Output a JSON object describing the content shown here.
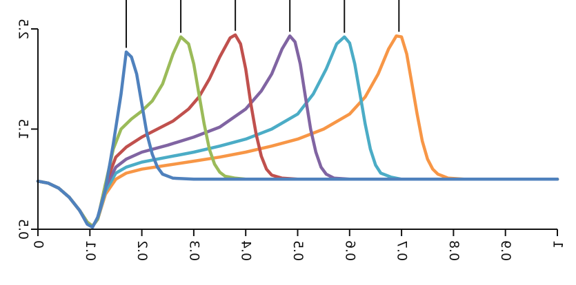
{
  "chart_data": {
    "type": "line",
    "title": "",
    "xlabel": "",
    "ylabel": "",
    "xlim": [
      0,
      1
    ],
    "ylim": [
      0.5,
      2.5
    ],
    "x_ticks": [
      0,
      0.1,
      0.2,
      0.3,
      0.4,
      0.5,
      0.6,
      0.7,
      0.8,
      0.9,
      1
    ],
    "x_tick_labels": [
      "0",
      "0.1",
      "0.2",
      "0.3",
      "0.4",
      "0.5",
      "0.6",
      "0.7",
      "0.8",
      "0.9",
      "1"
    ],
    "y_ticks": [
      0.5,
      1.5,
      2.5
    ],
    "y_tick_labels": [
      "0.5",
      "1.5",
      "2.5"
    ],
    "grid": false,
    "legend": "none",
    "rendering": "mirrored-image",
    "marker_lines_at_peaks": true,
    "series": [
      {
        "color": "#4f81bd",
        "peak_x": 0.17,
        "points": [
          [
            0,
            0.98
          ],
          [
            0.02,
            0.96
          ],
          [
            0.04,
            0.91
          ],
          [
            0.06,
            0.82
          ],
          [
            0.08,
            0.69
          ],
          [
            0.095,
            0.55
          ],
          [
            0.105,
            0.52
          ],
          [
            0.115,
            0.62
          ],
          [
            0.13,
            0.9
          ],
          [
            0.145,
            1.35
          ],
          [
            0.16,
            1.85
          ],
          [
            0.17,
            2.27
          ],
          [
            0.18,
            2.22
          ],
          [
            0.19,
            2.05
          ],
          [
            0.2,
            1.75
          ],
          [
            0.21,
            1.45
          ],
          [
            0.22,
            1.25
          ],
          [
            0.23,
            1.12
          ],
          [
            0.24,
            1.05
          ],
          [
            0.26,
            1.01
          ],
          [
            0.3,
            1.0
          ],
          [
            1,
            1.0
          ]
        ]
      },
      {
        "color": "#9bbb59",
        "peak_x": 0.275,
        "points": [
          [
            0,
            0.98
          ],
          [
            0.02,
            0.96
          ],
          [
            0.04,
            0.91
          ],
          [
            0.06,
            0.82
          ],
          [
            0.08,
            0.69
          ],
          [
            0.095,
            0.57
          ],
          [
            0.105,
            0.53
          ],
          [
            0.115,
            0.6
          ],
          [
            0.13,
            0.95
          ],
          [
            0.145,
            1.3
          ],
          [
            0.16,
            1.5
          ],
          [
            0.18,
            1.6
          ],
          [
            0.2,
            1.68
          ],
          [
            0.22,
            1.78
          ],
          [
            0.24,
            1.95
          ],
          [
            0.26,
            2.25
          ],
          [
            0.275,
            2.42
          ],
          [
            0.29,
            2.35
          ],
          [
            0.3,
            2.15
          ],
          [
            0.31,
            1.85
          ],
          [
            0.32,
            1.55
          ],
          [
            0.33,
            1.3
          ],
          [
            0.34,
            1.15
          ],
          [
            0.35,
            1.07
          ],
          [
            0.36,
            1.03
          ],
          [
            0.38,
            1.01
          ],
          [
            0.4,
            1.0
          ],
          [
            1,
            1.0
          ]
        ]
      },
      {
        "color": "#c0504d",
        "peak_x": 0.38,
        "points": [
          [
            0,
            0.98
          ],
          [
            0.02,
            0.96
          ],
          [
            0.04,
            0.91
          ],
          [
            0.06,
            0.82
          ],
          [
            0.08,
            0.69
          ],
          [
            0.095,
            0.57
          ],
          [
            0.105,
            0.53
          ],
          [
            0.115,
            0.6
          ],
          [
            0.13,
            0.95
          ],
          [
            0.15,
            1.22
          ],
          [
            0.17,
            1.32
          ],
          [
            0.2,
            1.42
          ],
          [
            0.23,
            1.5
          ],
          [
            0.26,
            1.58
          ],
          [
            0.29,
            1.7
          ],
          [
            0.31,
            1.82
          ],
          [
            0.33,
            2.0
          ],
          [
            0.35,
            2.22
          ],
          [
            0.37,
            2.41
          ],
          [
            0.38,
            2.44
          ],
          [
            0.39,
            2.35
          ],
          [
            0.4,
            2.1
          ],
          [
            0.41,
            1.75
          ],
          [
            0.42,
            1.45
          ],
          [
            0.43,
            1.23
          ],
          [
            0.44,
            1.1
          ],
          [
            0.45,
            1.04
          ],
          [
            0.47,
            1.01
          ],
          [
            0.5,
            1.0
          ],
          [
            1,
            1.0
          ]
        ]
      },
      {
        "color": "#8064a2",
        "peak_x": 0.485,
        "points": [
          [
            0,
            0.98
          ],
          [
            0.02,
            0.96
          ],
          [
            0.04,
            0.91
          ],
          [
            0.06,
            0.82
          ],
          [
            0.08,
            0.69
          ],
          [
            0.095,
            0.57
          ],
          [
            0.105,
            0.53
          ],
          [
            0.115,
            0.6
          ],
          [
            0.13,
            0.92
          ],
          [
            0.15,
            1.12
          ],
          [
            0.17,
            1.2
          ],
          [
            0.2,
            1.27
          ],
          [
            0.25,
            1.34
          ],
          [
            0.3,
            1.42
          ],
          [
            0.35,
            1.52
          ],
          [
            0.4,
            1.7
          ],
          [
            0.43,
            1.88
          ],
          [
            0.45,
            2.05
          ],
          [
            0.47,
            2.3
          ],
          [
            0.485,
            2.43
          ],
          [
            0.495,
            2.37
          ],
          [
            0.505,
            2.15
          ],
          [
            0.515,
            1.82
          ],
          [
            0.525,
            1.5
          ],
          [
            0.535,
            1.27
          ],
          [
            0.545,
            1.12
          ],
          [
            0.555,
            1.05
          ],
          [
            0.57,
            1.01
          ],
          [
            0.6,
            1.0
          ],
          [
            1,
            1.0
          ]
        ]
      },
      {
        "color": "#4bacc6",
        "peak_x": 0.59,
        "points": [
          [
            0,
            0.98
          ],
          [
            0.02,
            0.96
          ],
          [
            0.04,
            0.91
          ],
          [
            0.06,
            0.82
          ],
          [
            0.08,
            0.69
          ],
          [
            0.095,
            0.57
          ],
          [
            0.105,
            0.53
          ],
          [
            0.115,
            0.6
          ],
          [
            0.13,
            0.88
          ],
          [
            0.15,
            1.06
          ],
          [
            0.17,
            1.12
          ],
          [
            0.2,
            1.17
          ],
          [
            0.25,
            1.22
          ],
          [
            0.3,
            1.27
          ],
          [
            0.35,
            1.33
          ],
          [
            0.4,
            1.4
          ],
          [
            0.45,
            1.5
          ],
          [
            0.5,
            1.65
          ],
          [
            0.53,
            1.85
          ],
          [
            0.555,
            2.1
          ],
          [
            0.575,
            2.35
          ],
          [
            0.59,
            2.42
          ],
          [
            0.6,
            2.36
          ],
          [
            0.61,
            2.15
          ],
          [
            0.62,
            1.85
          ],
          [
            0.63,
            1.55
          ],
          [
            0.64,
            1.3
          ],
          [
            0.65,
            1.14
          ],
          [
            0.66,
            1.06
          ],
          [
            0.68,
            1.02
          ],
          [
            0.7,
            1.0
          ],
          [
            1,
            1.0
          ]
        ]
      },
      {
        "color": "#f79646",
        "peak_x": 0.695,
        "points": [
          [
            0,
            0.98
          ],
          [
            0.02,
            0.96
          ],
          [
            0.04,
            0.91
          ],
          [
            0.06,
            0.82
          ],
          [
            0.08,
            0.69
          ],
          [
            0.095,
            0.57
          ],
          [
            0.105,
            0.53
          ],
          [
            0.115,
            0.6
          ],
          [
            0.13,
            0.85
          ],
          [
            0.15,
            1.0
          ],
          [
            0.17,
            1.06
          ],
          [
            0.2,
            1.1
          ],
          [
            0.25,
            1.14
          ],
          [
            0.3,
            1.18
          ],
          [
            0.35,
            1.22
          ],
          [
            0.4,
            1.27
          ],
          [
            0.45,
            1.33
          ],
          [
            0.5,
            1.4
          ],
          [
            0.55,
            1.5
          ],
          [
            0.6,
            1.65
          ],
          [
            0.63,
            1.82
          ],
          [
            0.655,
            2.05
          ],
          [
            0.675,
            2.3
          ],
          [
            0.69,
            2.43
          ],
          [
            0.7,
            2.42
          ],
          [
            0.71,
            2.25
          ],
          [
            0.72,
            1.95
          ],
          [
            0.73,
            1.65
          ],
          [
            0.74,
            1.38
          ],
          [
            0.75,
            1.2
          ],
          [
            0.76,
            1.1
          ],
          [
            0.77,
            1.05
          ],
          [
            0.79,
            1.01
          ],
          [
            0.82,
            1.0
          ],
          [
            1,
            1.0
          ]
        ]
      }
    ]
  }
}
